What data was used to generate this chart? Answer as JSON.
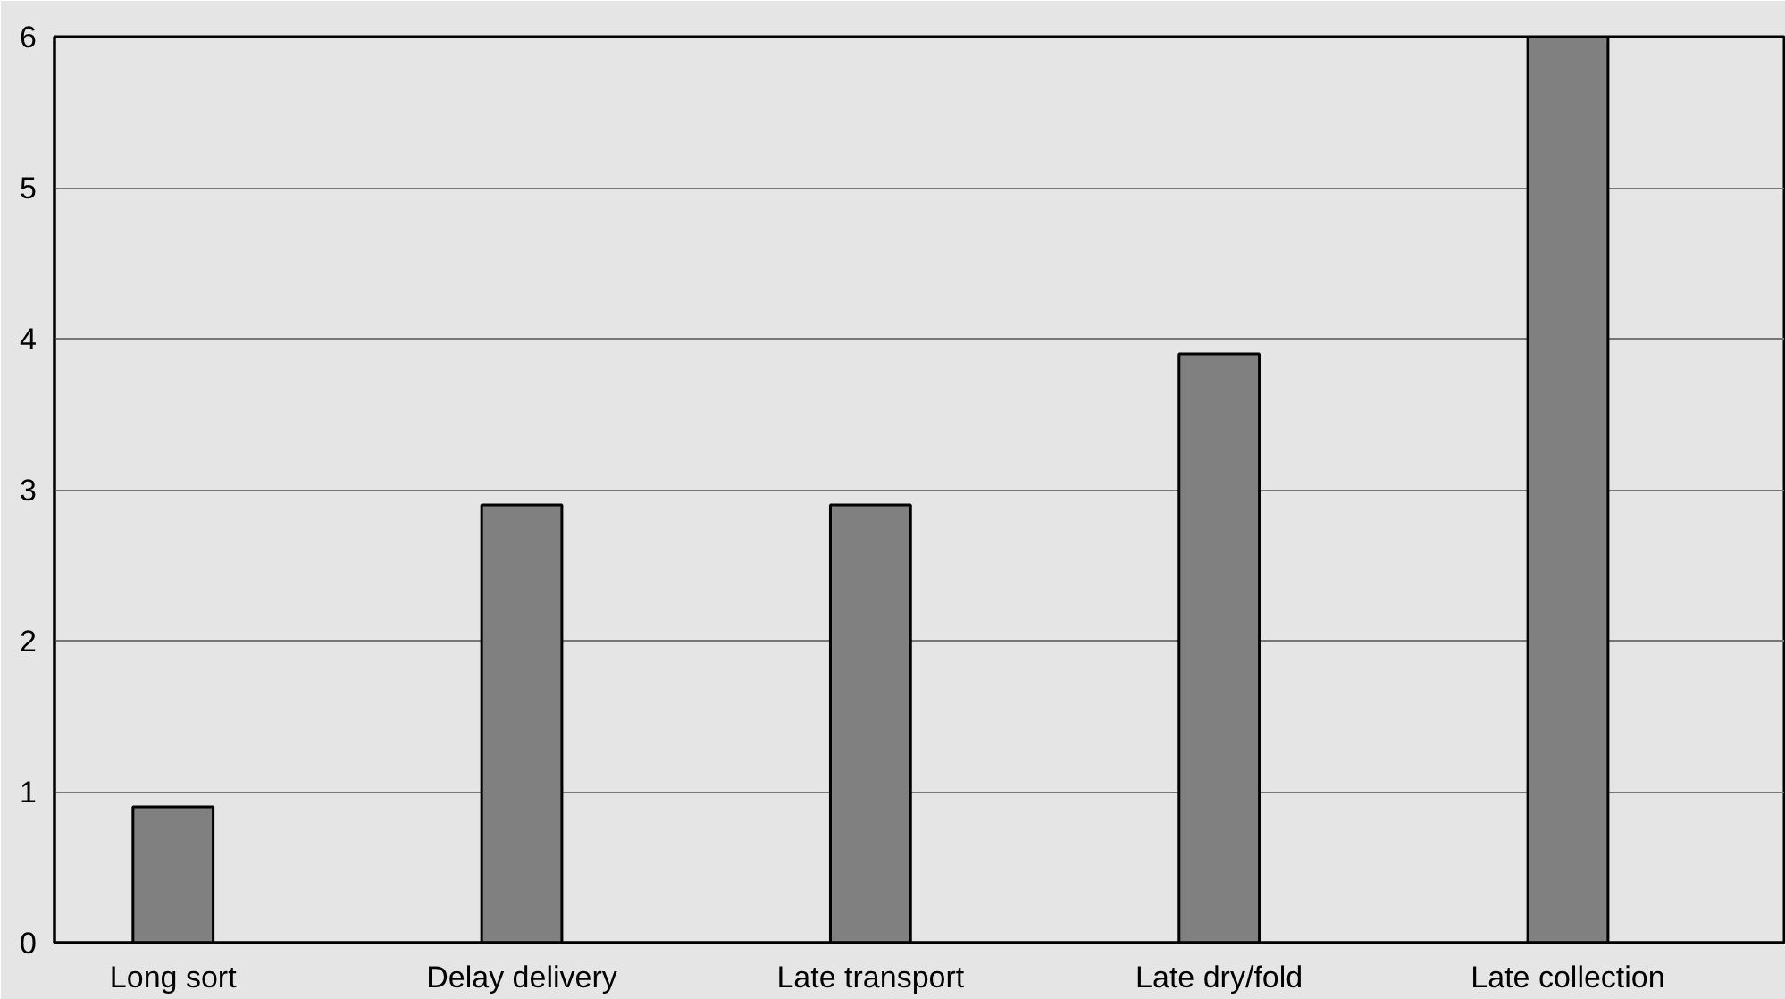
{
  "chart_data": {
    "type": "bar",
    "categories": [
      "Long sort",
      "Delay delivery",
      "Late transport",
      "Late dry/fold",
      "Late collection"
    ],
    "values": [
      0.9,
      2.9,
      2.9,
      3.9,
      6
    ],
    "color": "#808080",
    "ylim": [
      0,
      6
    ],
    "yticks": [
      0,
      1,
      2,
      3,
      4,
      5,
      6
    ],
    "grid": "y"
  }
}
